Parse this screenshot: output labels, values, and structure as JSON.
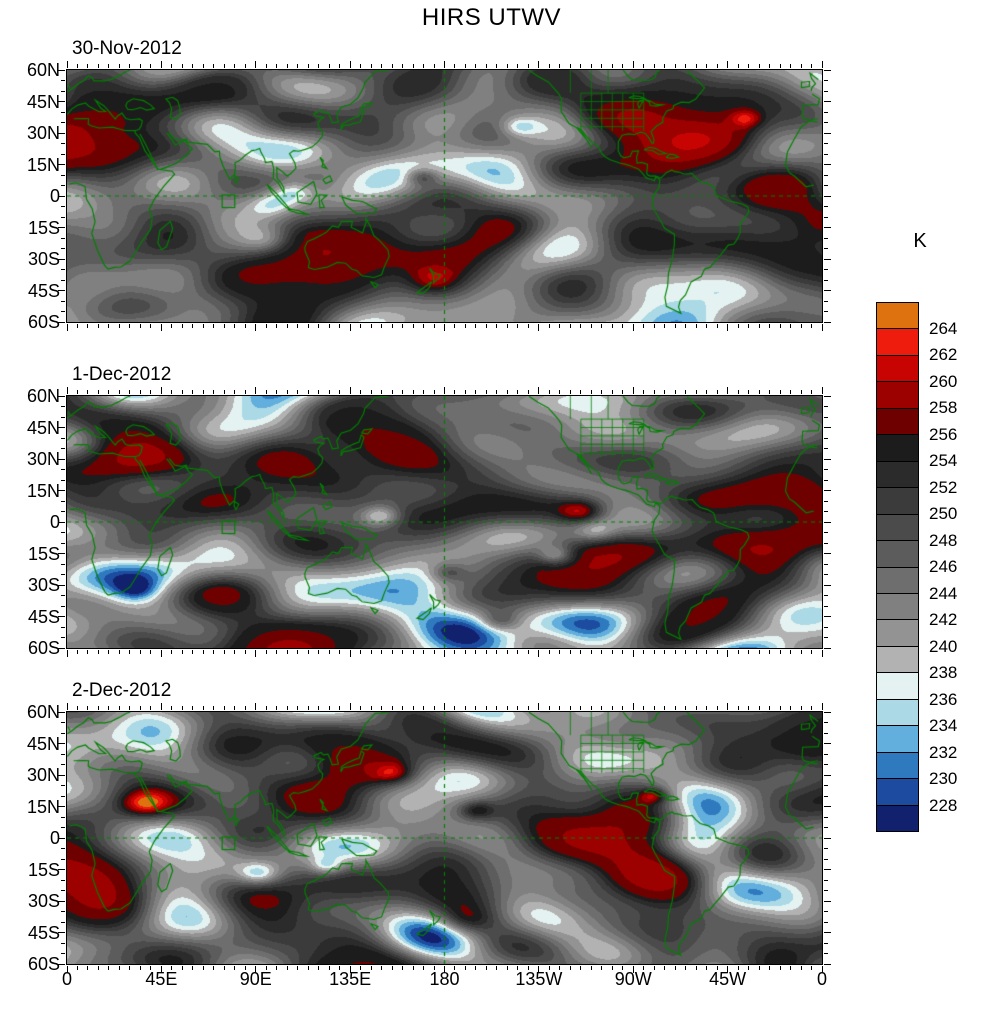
{
  "chart_data": {
    "type": "heatmap",
    "title": "HIRS UTWV",
    "units": "K",
    "panels": [
      {
        "label": "30-Nov-2012"
      },
      {
        "label": "1-Dec-2012"
      },
      {
        "label": "2-Dec-2012"
      }
    ],
    "x": {
      "ticks": [
        "0",
        "45E",
        "90E",
        "135E",
        "180",
        "135W",
        "90W",
        "45W",
        "0"
      ],
      "range_deg_lon": [
        0,
        360
      ]
    },
    "y": {
      "ticks": [
        "60N",
        "45N",
        "30N",
        "15N",
        "0",
        "15S",
        "30S",
        "45S",
        "60S"
      ],
      "range_deg_lat": [
        60,
        -60
      ]
    },
    "colorbar": {
      "title": "K",
      "boundary_labels": [
        "264",
        "262",
        "260",
        "258",
        "256",
        "254",
        "252",
        "250",
        "248",
        "246",
        "244",
        "242",
        "240",
        "238",
        "236",
        "234",
        "232",
        "230",
        "228"
      ],
      "contour_interval": 2,
      "colors_top_to_bottom": [
        "#dd720f",
        "#ee1c0c",
        "#c80403",
        "#9c0100",
        "#6e0100",
        "#1c1c1c",
        "#2b2b2b",
        "#3b3b3b",
        "#4b4b4b",
        "#5c5c5c",
        "#6e6e6e",
        "#808080",
        "#939393",
        "#b2b2b2",
        "#e4f3f1",
        "#abd9e6",
        "#62aedd",
        "#2f7abf",
        "#1c4ba0",
        "#12216e"
      ],
      "position": "right"
    },
    "map_overlay": {
      "coastline_color": "#008000",
      "dashed_lines": [
        "equator",
        "180 meridian"
      ],
      "reference_box_deg": {
        "lon": [
          74,
          80
        ],
        "lat": [
          -5.5,
          0.5
        ]
      }
    }
  }
}
